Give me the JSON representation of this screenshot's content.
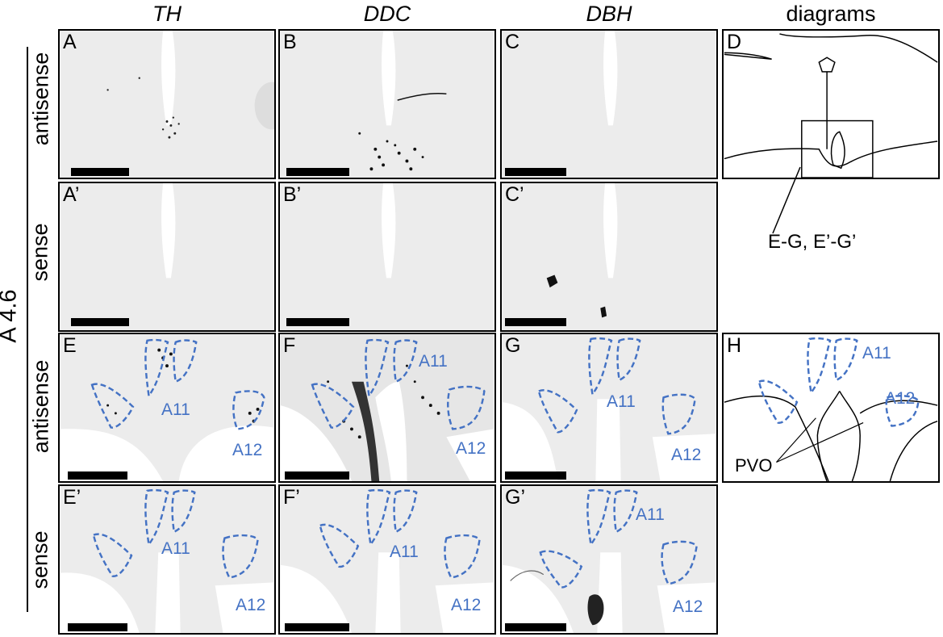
{
  "columns": [
    "TH",
    "DDC",
    "DBH",
    "diagrams"
  ],
  "rows": [
    "antisense",
    "sense",
    "antisense",
    "sense"
  ],
  "section_label": "A 4.6",
  "panels": {
    "A": "A",
    "B": "B",
    "C": "C",
    "D": "D",
    "A2": "A’",
    "B2": "B’",
    "C2": "C’",
    "E": "E",
    "F": "F",
    "G": "G",
    "H": "H",
    "E2": "E’",
    "F2": "F’",
    "G2": "G’"
  },
  "regions": {
    "a11": "A11",
    "a12": "A12",
    "pvo": "PVO"
  },
  "inset_label": "E-G, E’-G’",
  "colors": {
    "region_outline": "#4472c4",
    "tissue": "#f4f4f4"
  }
}
